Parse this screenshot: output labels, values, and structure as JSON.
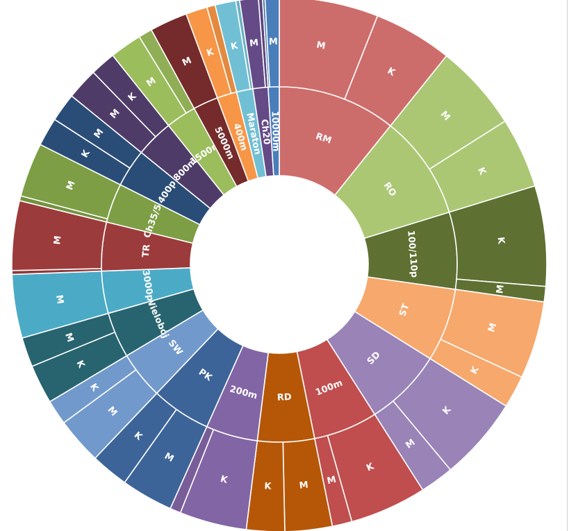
{
  "chart_data": {
    "type": "sunburst",
    "title": "",
    "start_angle_deg": 90,
    "direction": "clockwise",
    "inner_ring": [
      {
        "label": "RM",
        "value": 11.56,
        "color": "#cd6d6b",
        "children": [
          {
            "label": "M",
            "value": 6.44
          },
          {
            "label": "K",
            "value": 5.12
          }
        ]
      },
      {
        "label": "RO",
        "value": 10.22,
        "color": "#abc774",
        "children": [
          {
            "label": "M",
            "value": 5.64
          },
          {
            "label": "K",
            "value": 4.58
          }
        ]
      },
      {
        "label": "100/110p",
        "value": 7.52,
        "color": "#5e7032",
        "children": [
          {
            "label": "K",
            "value": 6.52
          },
          {
            "label": "M",
            "value": 1.0
          }
        ]
      },
      {
        "label": "ST",
        "value": 7.15,
        "color": "#f7a86c",
        "children": [
          {
            "label": "M",
            "value": 5.04
          },
          {
            "label": "K",
            "value": 2.11
          }
        ]
      },
      {
        "label": "SD",
        "value": 7.63,
        "color": "#9983b7",
        "children": [
          {
            "label": "K",
            "value": 5.44
          },
          {
            "label": "M",
            "value": 2.19
          }
        ]
      },
      {
        "label": "100m",
        "value": 6.27,
        "color": "#c04e4e",
        "children": [
          {
            "label": "K",
            "value": 4.99
          },
          {
            "label": "M",
            "value": 1.28
          }
        ]
      },
      {
        "label": "RD",
        "value": 5.55,
        "color": "#b65708",
        "children": [
          {
            "label": "M",
            "value": 3.07
          },
          {
            "label": "K",
            "value": 2.48
          }
        ]
      },
      {
        "label": "200m",
        "value": 5.06,
        "color": "#8265a5",
        "children": [
          {
            "label": "K",
            "value": 4.36
          },
          {
            "label": "",
            "value": 0.7
          }
        ]
      },
      {
        "label": "PK",
        "value": 5.82,
        "color": "#3c6499",
        "children": [
          {
            "label": "M",
            "value": 3.37
          },
          {
            "label": "K",
            "value": 2.45
          }
        ]
      },
      {
        "label": "SW",
        "value": 4.65,
        "color": "#7299cc",
        "children": [
          {
            "label": "M",
            "value": 3.03
          },
          {
            "label": "K",
            "value": 1.62
          }
        ]
      },
      {
        "label": "Wielobój",
        "value": 4.46,
        "color": "#27646f",
        "children": [
          {
            "label": "K",
            "value": 2.54
          },
          {
            "label": "M",
            "value": 1.92
          }
        ]
      },
      {
        "label": "3000p",
        "value": 4.13,
        "color": "#4babc6",
        "children": [
          {
            "label": "M",
            "value": 4.13
          }
        ]
      },
      {
        "label": "TR",
        "value": 4.77,
        "color": "#9c3b3b",
        "children": [
          {
            "label": "",
            "value": 0.25
          },
          {
            "label": "M",
            "value": 4.52
          }
        ]
      },
      {
        "label": "Ch35/50",
        "value": 3.84,
        "color": "#7d9e45",
        "children": [
          {
            "label": "",
            "value": 0.32
          },
          {
            "label": "M",
            "value": 3.52
          }
        ]
      },
      {
        "label": "400p",
        "value": 3.71,
        "color": "#2a4d77",
        "children": [
          {
            "label": "K",
            "value": 1.85
          },
          {
            "label": "M",
            "value": 1.86
          }
        ]
      },
      {
        "label": "800m",
        "value": 3.7,
        "color": "#4f3b68",
        "children": [
          {
            "label": "M",
            "value": 2.05
          },
          {
            "label": "K",
            "value": 1.65
          }
        ]
      },
      {
        "label": "1500m",
        "value": 2.97,
        "color": "#9bbd5c",
        "children": [
          {
            "label": "M",
            "value": 2.08
          },
          {
            "label": "",
            "value": 0.89
          }
        ]
      },
      {
        "label": "5000m",
        "value": 2.45,
        "color": "#752b2b",
        "children": [
          {
            "label": "M",
            "value": 2.45
          }
        ]
      },
      {
        "label": "400m",
        "value": 1.94,
        "color": "#f79646",
        "children": [
          {
            "label": "K",
            "value": 1.4
          },
          {
            "label": "",
            "value": 0.54
          }
        ]
      },
      {
        "label": "Maraton",
        "value": 1.6,
        "color": "#71bfd4",
        "children": [
          {
            "label": "K",
            "value": 1.35
          },
          {
            "label": "",
            "value": 0.25
          }
        ]
      },
      {
        "label": "Ch20",
        "value": 1.47,
        "color": "#644a86",
        "children": [
          {
            "label": "M",
            "value": 1.21
          },
          {
            "label": "",
            "value": 0.26
          }
        ]
      },
      {
        "label": "10000m",
        "value": 1.08,
        "color": "#4a7ebb",
        "children": [
          {
            "label": "",
            "value": 0.16
          },
          {
            "label": "M",
            "value": 0.92
          }
        ]
      }
    ]
  }
}
